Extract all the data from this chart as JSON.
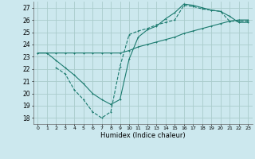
{
  "xlabel": "Humidex (Indice chaleur)",
  "bg_color": "#cce8ee",
  "grid_color": "#aacccc",
  "line_color": "#1a7a6e",
  "xlim": [
    -0.5,
    23.5
  ],
  "ylim": [
    17.5,
    27.5
  ],
  "yticks": [
    18,
    19,
    20,
    21,
    22,
    23,
    24,
    25,
    26,
    27
  ],
  "xticks": [
    0,
    1,
    2,
    3,
    4,
    5,
    6,
    7,
    8,
    9,
    10,
    11,
    12,
    13,
    14,
    15,
    16,
    17,
    18,
    19,
    20,
    21,
    22,
    23
  ],
  "line1_x": [
    0,
    1,
    2,
    3,
    4,
    5,
    6,
    7,
    8,
    9,
    10,
    11,
    12,
    13,
    14,
    15,
    16,
    17,
    18,
    19,
    20,
    21,
    22,
    23
  ],
  "line1_y": [
    23.3,
    23.3,
    23.3,
    23.3,
    23.3,
    23.3,
    23.3,
    23.3,
    23.3,
    23.3,
    23.5,
    23.8,
    24.0,
    24.2,
    24.4,
    24.6,
    24.9,
    25.1,
    25.3,
    25.5,
    25.7,
    25.9,
    26.0,
    26.0
  ],
  "line2_x": [
    2,
    3,
    4,
    5,
    6,
    7,
    8,
    9,
    10,
    11,
    12,
    13,
    14,
    15,
    16,
    17,
    18,
    19,
    20,
    21,
    22,
    23
  ],
  "line2_y": [
    22.1,
    21.6,
    20.3,
    19.5,
    18.5,
    18.0,
    18.5,
    22.2,
    24.8,
    25.1,
    25.3,
    25.6,
    25.8,
    26.0,
    27.2,
    27.1,
    26.9,
    26.8,
    26.7,
    25.9,
    25.9,
    25.9
  ],
  "line3_x": [
    0,
    1,
    2,
    3,
    4,
    5,
    6,
    7,
    8,
    9,
    10,
    11,
    12,
    13,
    14,
    15,
    16,
    17,
    18,
    19,
    20,
    21,
    22,
    23
  ],
  "line3_y": [
    23.3,
    23.3,
    22.7,
    22.1,
    21.5,
    20.8,
    20.0,
    19.5,
    19.1,
    19.5,
    22.8,
    24.6,
    25.2,
    25.5,
    26.1,
    26.6,
    27.3,
    27.2,
    27.0,
    26.8,
    26.7,
    26.3,
    25.8,
    25.8
  ],
  "tick_fontsize": 5,
  "xlabel_fontsize": 6
}
